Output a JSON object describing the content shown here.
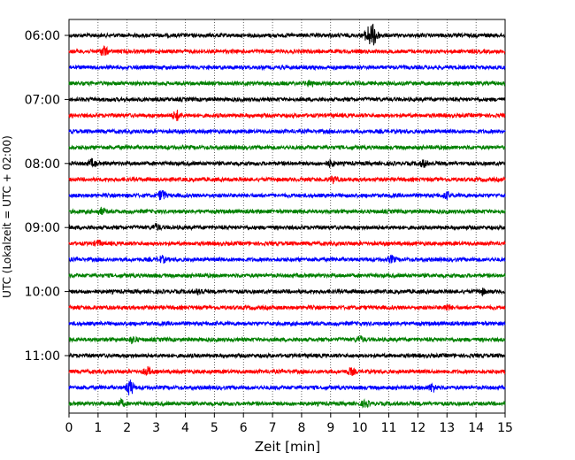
{
  "chart_data": {
    "type": "line",
    "title": "",
    "xlabel": "Zeit  [min]",
    "ylabel": "UTC (Lokalzeit = UTC + 02:00)",
    "xlim": [
      0,
      15
    ],
    "x_ticks": [
      "0",
      "1",
      "2",
      "3",
      "4",
      "5",
      "6",
      "7",
      "8",
      "9",
      "10",
      "11",
      "12",
      "13",
      "14",
      "15"
    ],
    "y_ticks": [
      "06:00",
      "07:00",
      "08:00",
      "09:00",
      "10:00",
      "11:00"
    ],
    "grid": "vertical dotted",
    "trace_interval_minutes": 15,
    "colors": [
      "#000000",
      "#ff0000",
      "#0000ff",
      "#008000"
    ],
    "traces": [
      {
        "start": "06:00",
        "color": "#000000",
        "events": [
          {
            "t": 10.3,
            "amp": 1.0
          },
          {
            "t": 10.5,
            "amp": 1.2
          }
        ]
      },
      {
        "start": "06:15",
        "color": "#ff0000",
        "events": [
          {
            "t": 1.2,
            "amp": 0.55
          }
        ]
      },
      {
        "start": "06:30",
        "color": "#0000ff",
        "events": []
      },
      {
        "start": "06:45",
        "color": "#008000",
        "events": [
          {
            "t": 8.3,
            "amp": 0.35
          }
        ]
      },
      {
        "start": "07:00",
        "color": "#000000",
        "events": []
      },
      {
        "start": "07:15",
        "color": "#ff0000",
        "events": [
          {
            "t": 3.7,
            "amp": 0.55
          }
        ]
      },
      {
        "start": "07:30",
        "color": "#0000ff",
        "events": []
      },
      {
        "start": "07:45",
        "color": "#008000",
        "events": []
      },
      {
        "start": "08:00",
        "color": "#000000",
        "events": [
          {
            "t": 0.8,
            "amp": 0.4
          },
          {
            "t": 9.0,
            "amp": 0.35
          },
          {
            "t": 12.2,
            "amp": 0.35
          }
        ]
      },
      {
        "start": "08:15",
        "color": "#ff0000",
        "events": [
          {
            "t": 9.1,
            "amp": 0.35
          }
        ]
      },
      {
        "start": "08:30",
        "color": "#0000ff",
        "events": [
          {
            "t": 3.2,
            "amp": 0.6
          },
          {
            "t": 13.0,
            "amp": 0.35
          }
        ]
      },
      {
        "start": "08:45",
        "color": "#008000",
        "events": [
          {
            "t": 1.1,
            "amp": 0.35
          }
        ]
      },
      {
        "start": "09:00",
        "color": "#000000",
        "events": [
          {
            "t": 3.0,
            "amp": 0.35
          }
        ]
      },
      {
        "start": "09:15",
        "color": "#ff0000",
        "events": [
          {
            "t": 1.0,
            "amp": 0.3
          }
        ]
      },
      {
        "start": "09:30",
        "color": "#0000ff",
        "events": [
          {
            "t": 3.2,
            "amp": 0.35
          },
          {
            "t": 11.1,
            "amp": 0.35
          }
        ]
      },
      {
        "start": "09:45",
        "color": "#008000",
        "events": []
      },
      {
        "start": "10:00",
        "color": "#000000",
        "events": [
          {
            "t": 4.5,
            "amp": 0.35
          },
          {
            "t": 14.2,
            "amp": 0.3
          }
        ]
      },
      {
        "start": "10:15",
        "color": "#ff0000",
        "events": [
          {
            "t": 13.0,
            "amp": 0.3
          }
        ]
      },
      {
        "start": "10:30",
        "color": "#0000ff",
        "events": []
      },
      {
        "start": "10:45",
        "color": "#008000",
        "events": [
          {
            "t": 2.2,
            "amp": 0.35
          },
          {
            "t": 10.0,
            "amp": 0.35
          }
        ]
      },
      {
        "start": "11:00",
        "color": "#000000",
        "events": []
      },
      {
        "start": "11:15",
        "color": "#ff0000",
        "events": [
          {
            "t": 2.7,
            "amp": 0.45
          },
          {
            "t": 9.7,
            "amp": 0.35
          }
        ]
      },
      {
        "start": "11:30",
        "color": "#0000ff",
        "events": [
          {
            "t": 2.1,
            "amp": 0.9
          },
          {
            "t": 12.5,
            "amp": 0.45
          }
        ]
      },
      {
        "start": "11:45",
        "color": "#008000",
        "events": [
          {
            "t": 1.8,
            "amp": 0.35
          },
          {
            "t": 10.2,
            "amp": 0.35
          }
        ]
      }
    ]
  }
}
